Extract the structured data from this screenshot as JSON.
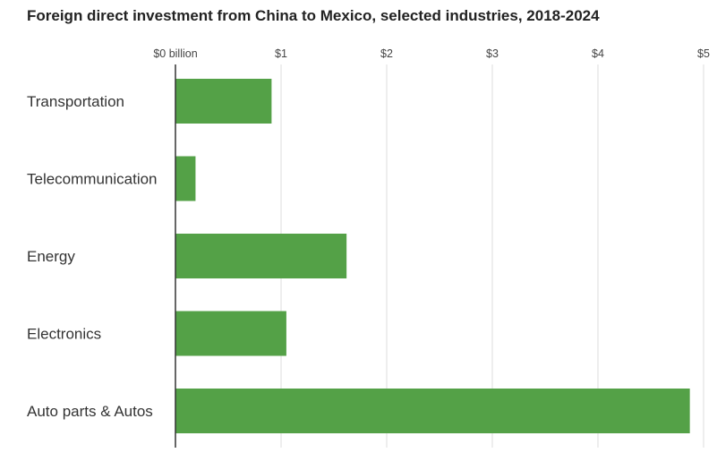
{
  "chart_data": {
    "type": "bar",
    "orientation": "horizontal",
    "title": "Foreign direct investment from China to Mexico, selected industries, 2018-2024",
    "categories": [
      "Transportation",
      "Telecommunication",
      "Energy",
      "Electronics",
      "Auto parts & Autos"
    ],
    "values": [
      0.91,
      0.19,
      1.62,
      1.05,
      4.87
    ],
    "x_ticks": [
      {
        "value": 0,
        "label": "$0 billion"
      },
      {
        "value": 1,
        "label": "$1"
      },
      {
        "value": 2,
        "label": "$2"
      },
      {
        "value": 3,
        "label": "$3"
      },
      {
        "value": 4,
        "label": "$4"
      },
      {
        "value": 5,
        "label": "$5"
      }
    ],
    "xlim": [
      0,
      5
    ],
    "grid": true,
    "bar_color": "#54a147",
    "grid_color": "#dddddd",
    "axis_color": "#333333"
  }
}
